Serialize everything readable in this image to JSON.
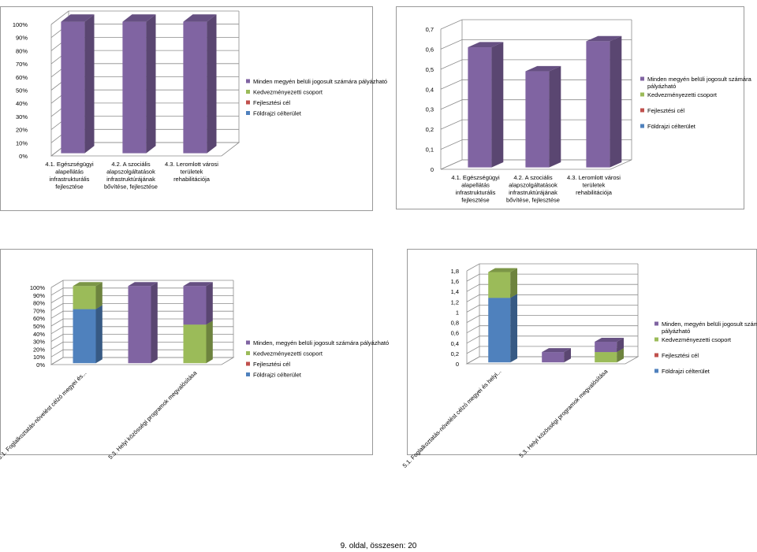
{
  "page": {
    "footer": "9. oldal, összesen: 20"
  },
  "legend_items": [
    {
      "label": "Minden megyén belüli jogosult számára pályázható",
      "color": "#8064A2"
    },
    {
      "label": "Kedvezményezetti csoport",
      "color": "#9BBB59"
    },
    {
      "label": "Fejlesztési cél",
      "color": "#C0504D"
    },
    {
      "label": "Földrajzi célterület",
      "color": "#4F81BD"
    }
  ],
  "legend_items_alt": [
    {
      "label": "Minden, megyén belüli jogosult számára pályázható",
      "color": "#8064A2"
    },
    {
      "label": "Kedvezményezetti csoport",
      "color": "#9BBB59"
    },
    {
      "label": "Fejlesztési cél",
      "color": "#C0504D"
    },
    {
      "label": "Földrajzi célterület",
      "color": "#4F81BD"
    }
  ],
  "chart_data": [
    {
      "type": "bar",
      "stacked": true,
      "categories": [
        [
          "4.1. Egészségügyi",
          "alapellátás",
          "infrastrukturális",
          "fejlesztése"
        ],
        [
          "4.2. A szociális",
          "alapszolgáltatások",
          "infrastruktúrájának",
          "bővítése, fejlesztése"
        ],
        [
          "4.3. Leromlott városi",
          "területek",
          "rehabilitációja"
        ]
      ],
      "series": [
        {
          "name": "Földrajzi célterület",
          "values": [
            0,
            0,
            0
          ]
        },
        {
          "name": "Fejlesztési cél",
          "values": [
            0,
            0,
            0
          ]
        },
        {
          "name": "Kedvezményezetti csoport",
          "values": [
            0,
            0,
            0
          ]
        },
        {
          "name": "Minden megyén belüli jogosult számára pályázható",
          "values": [
            100,
            100,
            100
          ]
        }
      ],
      "y_ticks": [
        "0%",
        "10%",
        "20%",
        "30%",
        "40%",
        "50%",
        "60%",
        "70%",
        "80%",
        "90%",
        "100%"
      ],
      "ylim": [
        0,
        100
      ],
      "legend": "right"
    },
    {
      "type": "bar",
      "stacked": true,
      "categories": [
        [
          "4.1. Egészségügyi",
          "alapellátás",
          "infrastrukturális",
          "fejlesztése"
        ],
        [
          "4.2. A szociális",
          "alapszolgáltatások",
          "infrastruktúrájának",
          "bővítése, fejlesztése"
        ],
        [
          "4.3. Leromlott városi",
          "területek",
          "rehabilitációja"
        ]
      ],
      "series": [
        {
          "name": "Földrajzi célterület",
          "values": [
            0,
            0,
            0
          ]
        },
        {
          "name": "Fejlesztési cél",
          "values": [
            0,
            0,
            0
          ]
        },
        {
          "name": "Kedvezményezetti csoport",
          "values": [
            0,
            0,
            0
          ]
        },
        {
          "name": "Minden megyén belüli jogosult számára pályázható",
          "values": [
            0.6,
            0.48,
            0.63
          ]
        }
      ],
      "y_ticks": [
        "0",
        "0,1",
        "0,2",
        "0,3",
        "0,4",
        "0,5",
        "0,6",
        "0,7"
      ],
      "ylim": [
        0,
        0.7
      ],
      "legend": "right"
    },
    {
      "type": "bar",
      "stacked": true,
      "categories": [
        [
          "5.1. Foglalkoztatás-növelést célzó megyei és..."
        ],
        [
          ""
        ],
        [
          "5.3. Helyi közösségi programok megvalósítása"
        ]
      ],
      "series": [
        {
          "name": "Földrajzi célterület",
          "values": [
            70,
            0,
            0
          ]
        },
        {
          "name": "Fejlesztési cél",
          "values": [
            0,
            0,
            0
          ]
        },
        {
          "name": "Kedvezményezetti csoport",
          "values": [
            30,
            0,
            50
          ]
        },
        {
          "name": "Minden, megyén belüli jogosult számára pályázható",
          "values": [
            0,
            100,
            50
          ]
        }
      ],
      "y_ticks": [
        "0%",
        "10%",
        "20%",
        "30%",
        "40%",
        "50%",
        "60%",
        "70%",
        "80%",
        "90%",
        "100%"
      ],
      "ylim": [
        0,
        100
      ],
      "legend": "right"
    },
    {
      "type": "bar",
      "stacked": true,
      "categories": [
        [
          "5.1. Foglalkoztatás-növelést célzó megyei és helyi..."
        ],
        [
          ""
        ],
        [
          "5.3. Helyi közösségi programok megvalósítása"
        ]
      ],
      "series": [
        {
          "name": "Földrajzi célterület",
          "values": [
            1.25,
            0,
            0
          ]
        },
        {
          "name": "Fejlesztési cél",
          "values": [
            0,
            0,
            0
          ]
        },
        {
          "name": "Kedvezményezetti csoport",
          "values": [
            0.5,
            0,
            0.2
          ]
        },
        {
          "name": "Minden, megyén belüli jogosult számára pályázható",
          "values": [
            0,
            0.2,
            0.2
          ]
        }
      ],
      "y_ticks": [
        "0",
        "0,2",
        "0,4",
        "0,6",
        "0,8",
        "1",
        "1,2",
        "1,4",
        "1,6",
        "1,8"
      ],
      "ylim": [
        0,
        1.8
      ],
      "legend": "right"
    }
  ]
}
